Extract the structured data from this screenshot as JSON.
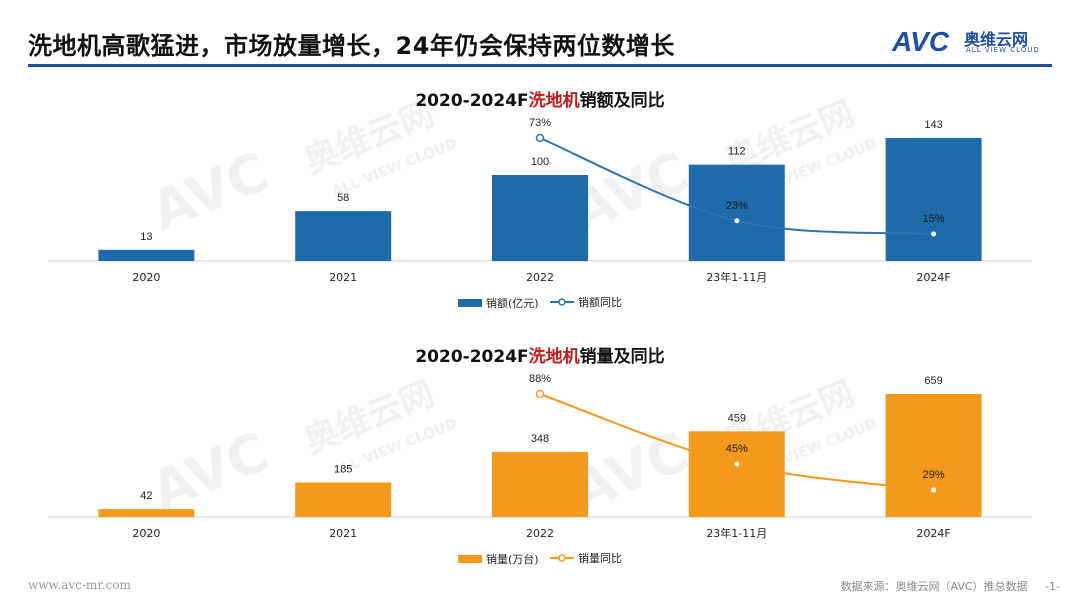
{
  "header": {
    "title": "洗地机高歌猛进，市场放量增长，24年仍会保持两位数增长"
  },
  "logo": {
    "mark": "AVC",
    "name_cn": "奥维云网",
    "name_en": "ALL VIEW CLOUD"
  },
  "watermark": {
    "mark": "AVC",
    "name_cn": "奥维云网",
    "name_en": "ALL VIEW CLOUD"
  },
  "colors": {
    "brand": "#1f4fa0",
    "highlight": "#c0181f",
    "blue_bar": "#1f6aa8",
    "orange_bar": "#f39a1d"
  },
  "chart_data": [
    {
      "type": "bar",
      "title_prefix": "2020-2024F",
      "title_highlight": "洗地机",
      "title_suffix": "销额及同比",
      "categories": [
        "2020",
        "2021",
        "2022",
        "23年1-11月",
        "2024F"
      ],
      "series": [
        {
          "name": "销额(亿元)",
          "type": "bar",
          "values": [
            13,
            58,
            100,
            112,
            143
          ],
          "labels": [
            "13",
            "58",
            "100",
            "112",
            "143"
          ]
        },
        {
          "name": "销额同比",
          "type": "line",
          "values": [
            null,
            null,
            73,
            23,
            15
          ],
          "labels": [
            "",
            "",
            "73%",
            "23%",
            "15%"
          ]
        }
      ],
      "bar_color": "#1f6aa8",
      "line_color": "#2d74b0",
      "legend_position": "bottom"
    },
    {
      "type": "bar",
      "title_prefix": "2020-2024F",
      "title_highlight": "洗地机",
      "title_suffix": "销量及同比",
      "categories": [
        "2020",
        "2021",
        "2022",
        "23年1-11月",
        "2024F"
      ],
      "series": [
        {
          "name": "销量(万台)",
          "type": "bar",
          "values": [
            42,
            185,
            348,
            459,
            659
          ],
          "labels": [
            "42",
            "185",
            "348",
            "459",
            "659"
          ]
        },
        {
          "name": "销量同比",
          "type": "line",
          "values": [
            null,
            null,
            88,
            45,
            29
          ],
          "labels": [
            "",
            "",
            "88%",
            "45%",
            "29%"
          ]
        }
      ],
      "bar_color": "#f39a1d",
      "line_color": "#f39a1d",
      "legend_position": "bottom"
    }
  ],
  "footer": {
    "website": "www.avc-mr.com",
    "source": "数据来源：奥维云网（AVC）推总数据",
    "page": "-1-"
  }
}
